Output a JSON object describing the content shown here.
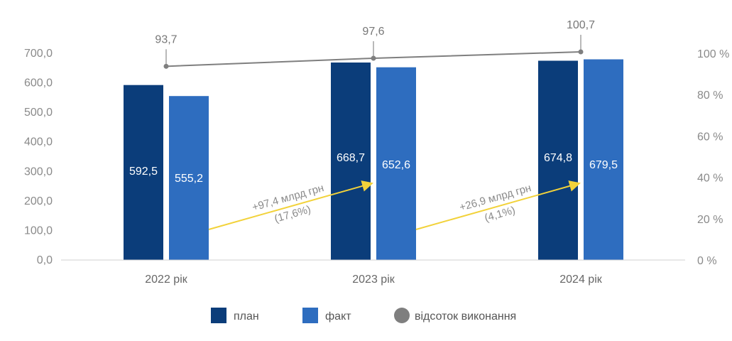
{
  "chart_data": {
    "type": "bar",
    "categories": [
      "2022 рік",
      "2023 рік",
      "2024 рік"
    ],
    "series": [
      {
        "name": "план",
        "values": [
          592.5,
          668.7,
          674.8
        ],
        "labels": [
          "592,5",
          "668,7",
          "674,8"
        ],
        "color": "#0b3d7a"
      },
      {
        "name": "факт",
        "values": [
          555.2,
          652.6,
          679.5
        ],
        "labels": [
          "555,2",
          "652,6",
          "679,5"
        ],
        "color": "#2e6dbf"
      }
    ],
    "line_series": {
      "name": "відсоток виконання",
      "values": [
        93.7,
        97.6,
        100.7
      ],
      "labels": [
        "93,7",
        "97,6",
        "100,7"
      ],
      "color": "#7f7f7f"
    },
    "ylim": [
      0,
      700
    ],
    "y_ticks": [
      "0,0",
      "100,0",
      "200,0",
      "300,0",
      "400,0",
      "500,0",
      "600,0",
      "700,0"
    ],
    "y2lim": [
      0,
      100
    ],
    "y2_ticks": [
      "0 %",
      "20 %",
      "40 %",
      "60 %",
      "80 %",
      "100 %"
    ],
    "annotations": [
      {
        "line1": "+97,4 млрд грн",
        "line2": "(17,6%)",
        "color": "#f2d23a"
      },
      {
        "line1": "+26,9 млрд грн",
        "line2": "(4,1%)",
        "color": "#f2d23a"
      }
    ],
    "legend_position": "bottom",
    "grid": false
  }
}
